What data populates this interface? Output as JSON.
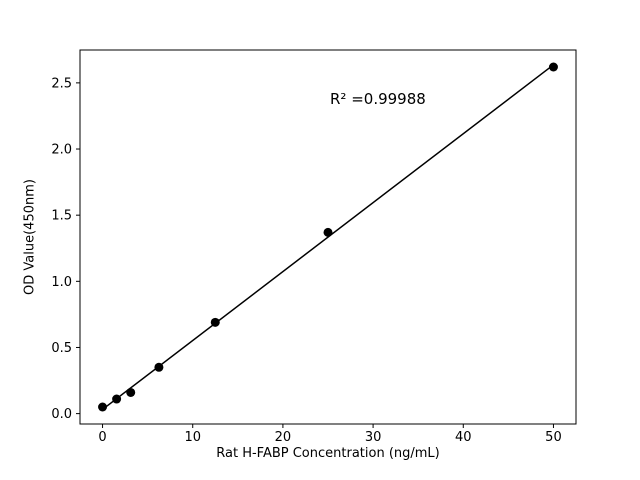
{
  "chart_data": {
    "type": "scatter",
    "title": "",
    "xlabel": "Rat H-FABP Concentration (ng/mL)",
    "ylabel": "OD Value(450nm)",
    "annotation": "R² =0.99988",
    "x": [
      0,
      1.56,
      3.125,
      6.25,
      12.5,
      25,
      50
    ],
    "y": [
      0.05,
      0.11,
      0.16,
      0.35,
      0.69,
      1.37,
      2.62
    ],
    "xticks": [
      0,
      10,
      20,
      30,
      40,
      50
    ],
    "yticks": [
      0.0,
      0.5,
      1.0,
      1.5,
      2.0,
      2.5
    ],
    "xlim": [
      -2.5,
      52.5
    ],
    "ylim": [
      -0.0785,
      2.7485
    ],
    "line_fit": "least-squares",
    "marker_color": "#000000",
    "line_color": "#000000",
    "legend": "none",
    "grid": false
  }
}
